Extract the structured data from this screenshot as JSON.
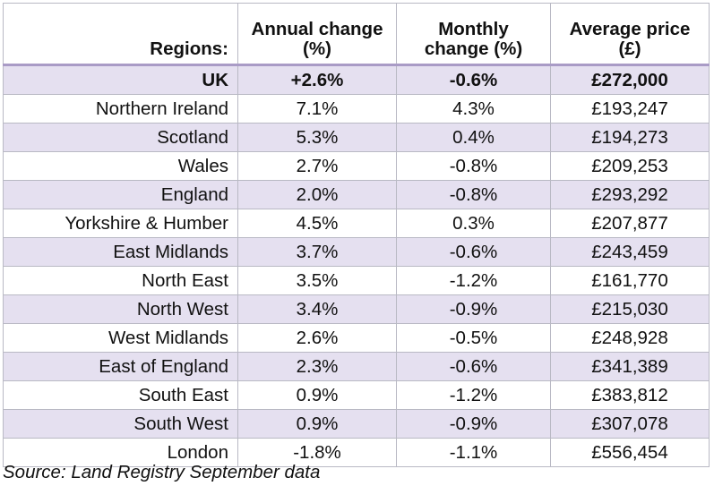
{
  "table": {
    "header": [
      "Regions:",
      "Annual change (%)",
      "Monthly change (%)",
      "Average price (£)"
    ],
    "rows": [
      [
        "UK",
        "+2.6%",
        "-0.6%",
        "£272,000"
      ],
      [
        "Northern Ireland",
        "7.1%",
        "4.3%",
        "£193,247"
      ],
      [
        "Scotland",
        "5.3%",
        "0.4%",
        "£194,273"
      ],
      [
        "Wales",
        "2.7%",
        "-0.8%",
        "£209,253"
      ],
      [
        "England",
        "2.0%",
        "-0.8%",
        "£293,292"
      ],
      [
        "Yorkshire & Humber",
        "4.5%",
        "0.3%",
        "£207,877"
      ],
      [
        "East Midlands",
        "3.7%",
        "-0.6%",
        "£243,459"
      ],
      [
        "North East",
        "3.5%",
        "-1.2%",
        "£161,770"
      ],
      [
        "North West",
        "3.4%",
        "-0.9%",
        "£215,030"
      ],
      [
        "West Midlands",
        "2.6%",
        "-0.5%",
        "£248,928"
      ],
      [
        "East of England",
        "2.3%",
        "-0.6%",
        "£341,389"
      ],
      [
        "South East",
        "0.9%",
        "-1.2%",
        "£383,812"
      ],
      [
        "South West",
        "0.9%",
        "-0.9%",
        "£307,078"
      ],
      [
        "London",
        "-1.8%",
        "-1.1%",
        "£556,454"
      ]
    ]
  },
  "source": "Source: Land Registry September data"
}
